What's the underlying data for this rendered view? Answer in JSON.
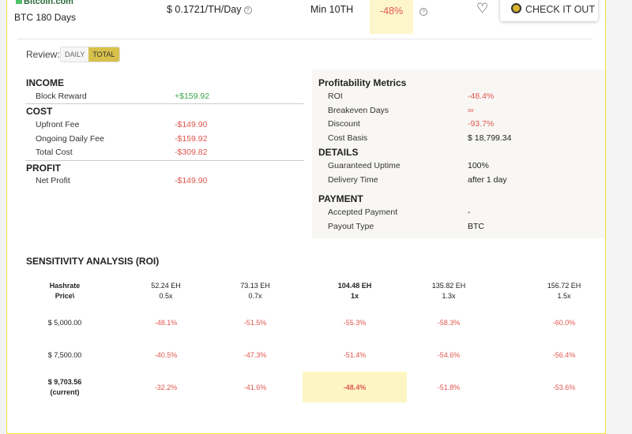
{
  "header": {
    "brand": "Bitcoin.com",
    "product": "BTC 180 Days",
    "price": "$ 0.1721/TH/Day",
    "minimum": "Min 10TH",
    "discount": "-48%",
    "cta": "CHECK IT OUT",
    "help_icon": "question-circle-icon",
    "favorite_icon": "heart-icon"
  },
  "review": {
    "label": "Review:",
    "options": [
      "DAILY",
      "TOTAL"
    ],
    "selected": "TOTAL"
  },
  "income": {
    "title": "INCOME",
    "rows": [
      {
        "label": "Block Reward",
        "value": "+$159.92"
      }
    ]
  },
  "cost": {
    "title": "COST",
    "rows": [
      {
        "label": "Upfront Fee",
        "value": "-$149.90"
      },
      {
        "label": "Ongoing Daily Fee",
        "value": "-$159.92"
      },
      {
        "label": "Total Cost",
        "value": "-$309.82"
      }
    ]
  },
  "profit": {
    "title": "PROFIT",
    "rows": [
      {
        "label": "Net Profit",
        "value": "-$149.90"
      }
    ]
  },
  "metrics": {
    "title": "Profitability Metrics",
    "rows": [
      {
        "label": "ROI",
        "value": "-48.4%"
      },
      {
        "label": "Breakeven Days",
        "value": "∞"
      },
      {
        "label": "Discount",
        "value": "-93.7%"
      },
      {
        "label": "Cost Basis",
        "value": "$ 18,799.34"
      }
    ]
  },
  "details": {
    "title": "DETAILS",
    "rows": [
      {
        "label": "Guaranteed Uptime",
        "value": "100%"
      },
      {
        "label": "Delivery Time",
        "value": "after 1 day"
      }
    ]
  },
  "payment": {
    "title": "PAYMENT",
    "rows": [
      {
        "label": "Accepted Payment",
        "value": "-"
      },
      {
        "label": "Payout Type",
        "value": "BTC"
      }
    ]
  },
  "sensitivity": {
    "title": "SENSITIVITY ANALYSIS (ROI)",
    "corner": [
      "Hashrate",
      "Price\\"
    ],
    "columns": [
      {
        "hash": "52.24 EH",
        "mult": "0.5x"
      },
      {
        "hash": "73.13 EH",
        "mult": "0.7x"
      },
      {
        "hash": "104.48 EH",
        "mult": "1x"
      },
      {
        "hash": "135.82 EH",
        "mult": "1.3x"
      },
      {
        "hash": "156.72 EH",
        "mult": "1.5x"
      }
    ],
    "rows": [
      {
        "price": "$ 5,000.00",
        "note": "",
        "values": [
          "-48.1%",
          "-51.5%",
          "-55.3%",
          "-58.3%",
          "-60.0%"
        ]
      },
      {
        "price": "$ 7,500.00",
        "note": "",
        "values": [
          "-40.5%",
          "-47.3%",
          "-51.4%",
          "-54.6%",
          "-56.4%"
        ]
      },
      {
        "price": "$ 9,703.56",
        "note": "(current)",
        "values": [
          "-32.2%",
          "-41.6%",
          "-48.4%",
          "-51.8%",
          "-53.6%"
        ]
      }
    ]
  }
}
